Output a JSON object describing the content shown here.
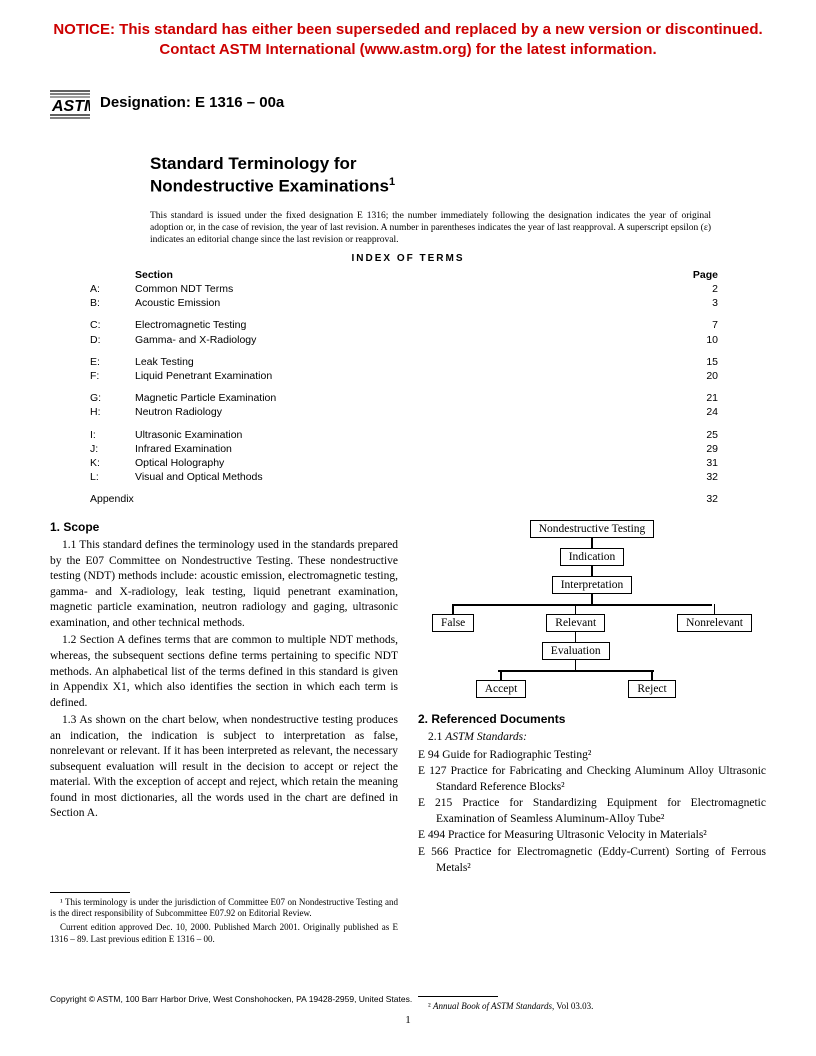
{
  "notice": {
    "line1": "NOTICE: This standard has either been superseded and replaced by a new version or discontinued.",
    "line2": "Contact ASTM International (www.astm.org) for the latest information."
  },
  "designation": "Designation: E 1316 – 00a",
  "title_line1": "Standard Terminology for",
  "title_line2": "Nondestructive Examinations",
  "title_sup": "1",
  "issue_note": "This standard is issued under the fixed designation E 1316; the number immediately following the designation indicates the year of original adoption or, in the case of revision, the year of last revision. A number in parentheses indicates the year of last reapproval. A superscript epsilon (ε) indicates an editorial change since the last revision or reapproval.",
  "index_title": "INDEX  OF  TERMS",
  "index_headers": {
    "section": "Section",
    "page": "Page"
  },
  "index_groups": [
    [
      {
        "letter": "A:",
        "section": "Common NDT Terms",
        "page": "2"
      },
      {
        "letter": "B:",
        "section": "Acoustic Emission",
        "page": "3"
      }
    ],
    [
      {
        "letter": "C:",
        "section": "Electromagnetic Testing",
        "page": "7"
      },
      {
        "letter": "D:",
        "section": "Gamma- and X-Radiology",
        "page": "10"
      }
    ],
    [
      {
        "letter": "E:",
        "section": "Leak Testing",
        "page": "15"
      },
      {
        "letter": "F:",
        "section": "Liquid Penetrant Examination",
        "page": "20"
      }
    ],
    [
      {
        "letter": "G:",
        "section": "Magnetic Particle Examination",
        "page": "21"
      },
      {
        "letter": "H:",
        "section": "Neutron Radiology",
        "page": "24"
      }
    ],
    [
      {
        "letter": "I:",
        "section": "Ultrasonic Examination",
        "page": "25"
      },
      {
        "letter": "J:",
        "section": "Infrared Examination",
        "page": "29"
      },
      {
        "letter": "K:",
        "section": "Optical Holography",
        "page": "31"
      },
      {
        "letter": "L:",
        "section": "Visual and Optical Methods",
        "page": "32"
      }
    ]
  ],
  "appendix": {
    "label": "Appendix",
    "page": "32"
  },
  "scope": {
    "heading": "1.  Scope",
    "p1": "1.1 This standard defines the terminology used in the standards prepared by the E07 Committee on Nondestructive Testing. These nondestructive testing (NDT) methods include: acoustic emission, electromagnetic testing, gamma- and X-radiology, leak testing, liquid penetrant examination, magnetic particle examination, neutron radiology and gaging, ultrasonic examination, and other technical methods.",
    "p2": "1.2 Section A defines terms that are common to multiple NDT methods, whereas, the subsequent sections define terms pertaining to specific NDT methods. An alphabetical list of the terms defined in this standard is given in Appendix X1, which also identifies the section in which each term is defined.",
    "p3": "1.3 As shown on the chart below, when nondestructive testing produces an indication, the indication is subject to interpretation as false, nonrelevant or relevant. If it has been interpreted as relevant, the necessary subsequent evaluation will result in the decision to accept or reject the material. With the exception of accept and reject, which retain the meaning found in most dictionaries, all the words used in the chart are defined in Section A."
  },
  "footnotes_left": {
    "f1": "¹ This terminology is under the jurisdiction of Committee E07 on Nondestructive Testing and is the direct responsibility of Subcommittee E07.92 on Editorial Review.",
    "f2": "Current edition approved Dec. 10, 2000. Published March 2001. Originally published as E 1316 – 89. Last previous edition E 1316 – 00."
  },
  "chart": {
    "n1": "Nondestructive Testing",
    "n2": "Indication",
    "n3": "Interpretation",
    "n4a": "False",
    "n4b": "Relevant",
    "n4c": "Nonrelevant",
    "n5": "Evaluation",
    "n6a": "Accept",
    "n6b": "Reject"
  },
  "refs": {
    "heading": "2.  Referenced Documents",
    "sub": "2.1 ASTM Standards:",
    "items": [
      "E 94  Guide for Radiographic Testing²",
      "E 127 Practice for Fabricating and Checking Aluminum Alloy Ultrasonic Standard Reference Blocks²",
      "E 215 Practice for Standardizing Equipment for Electromagnetic Examination of Seamless Aluminum-Alloy Tube²",
      "E 494 Practice for Measuring Ultrasonic Velocity in Materials²",
      "E 566 Practice for Electromagnetic (Eddy-Current) Sorting of Ferrous Metals²"
    ]
  },
  "footnote_right": "² Annual Book of ASTM Standards, Vol 03.03.",
  "copyright": "Copyright © ASTM, 100 Barr Harbor Drive, West Conshohocken, PA 19428-2959, United States.",
  "page_num": "1"
}
